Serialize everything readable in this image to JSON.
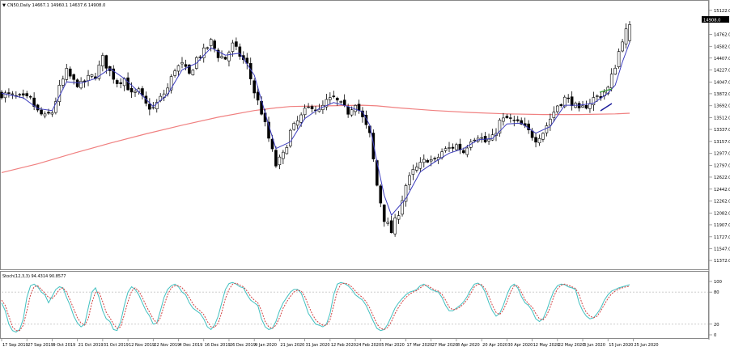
{
  "header": {
    "symbol_line": "CN50,Daily  14667.1 14960.1 14637.6 14908.0"
  },
  "price_label": "14908.0",
  "stoch_label": "Stoch(12,3,3) 94.4314 90.8577",
  "colors": {
    "bull": "#ffffff",
    "bear": "#000000",
    "ema_fast": "#3c3cbe",
    "ma_slow": "#f08080",
    "stoch_main": "#40c0c0",
    "stoch_signal": "#d04040",
    "trend_blue": "#1a1a9a",
    "trend_green": "#3aa03a",
    "grid": "#c8c8c8"
  },
  "chart_data": [
    {
      "type": "candlestick",
      "title": "CN50,Daily",
      "ohlc_header": {
        "open": 14667.1,
        "high": 14960.1,
        "low": 14637.6,
        "close": 14908.0
      },
      "y_ticks": [
        15122.0,
        14762.0,
        14582.0,
        14407.0,
        14227.0,
        14047.0,
        13872.0,
        13692.0,
        13512.0,
        13337.0,
        13157.0,
        12977.0,
        12797.0,
        12622.0,
        12442.0,
        12262.0,
        12082.0,
        11907.0,
        11727.0,
        11547.0,
        11372.0
      ],
      "ylim": [
        11300,
        15180
      ],
      "x_labels": [
        "17 Sep 2019",
        "27 Sep 2019",
        "9 Oct 2019",
        "21 Oct 2019",
        "31 Oct 2019",
        "12 Nov 2019",
        "22 Nov 2019",
        "4 Dec 2019",
        "16 Dec 2019",
        "26 Dec 2019",
        "9 Jan 2020",
        "21 Jan 2020",
        "31 Jan 2020",
        "12 Feb 2020",
        "24 Feb 2020",
        "5 Mar 2020",
        "17 Mar 2020",
        "27 Mar 2020",
        "8 Apr 2020",
        "20 Apr 2020",
        "30 Apr 2020",
        "12 May 2020",
        "22 May 2020",
        "3 Jun 2020",
        "15 Jun 2020",
        "25 Jun 2020"
      ],
      "close_path": [
        [
          0,
          13870
        ],
        [
          4,
          13820
        ],
        [
          8,
          13780
        ],
        [
          10,
          13600
        ],
        [
          12,
          13520
        ],
        [
          14,
          13600
        ],
        [
          16,
          13950
        ],
        [
          18,
          14200
        ],
        [
          20,
          14050
        ],
        [
          22,
          14000
        ],
        [
          24,
          14100
        ],
        [
          26,
          14150
        ],
        [
          28,
          14400
        ],
        [
          30,
          14200
        ],
        [
          32,
          14050
        ],
        [
          34,
          14100
        ],
        [
          36,
          13850
        ],
        [
          38,
          13900
        ],
        [
          40,
          13700
        ],
        [
          42,
          13650
        ],
        [
          44,
          13800
        ],
        [
          46,
          13950
        ],
        [
          48,
          14250
        ],
        [
          50,
          14300
        ],
        [
          52,
          14150
        ],
        [
          54,
          14400
        ],
        [
          56,
          14500
        ],
        [
          58,
          14650
        ],
        [
          60,
          14450
        ],
        [
          62,
          14400
        ],
        [
          64,
          14600
        ],
        [
          66,
          14450
        ],
        [
          68,
          14300
        ],
        [
          70,
          13900
        ],
        [
          72,
          13600
        ],
        [
          74,
          13200
        ],
        [
          76,
          12800
        ],
        [
          78,
          12950
        ],
        [
          80,
          13300
        ],
        [
          82,
          13450
        ],
        [
          84,
          13600
        ],
        [
          86,
          13700
        ],
        [
          88,
          13600
        ],
        [
          90,
          13750
        ],
        [
          92,
          13800
        ],
        [
          94,
          13700
        ],
        [
          96,
          13600
        ],
        [
          98,
          13750
        ],
        [
          100,
          13500
        ],
        [
          102,
          13250
        ],
        [
          104,
          12500
        ],
        [
          106,
          12000
        ],
        [
          108,
          11800
        ],
        [
          110,
          12100
        ],
        [
          112,
          12500
        ],
        [
          114,
          12700
        ],
        [
          116,
          12800
        ],
        [
          118,
          12900
        ],
        [
          120,
          12850
        ],
        [
          122,
          13000
        ],
        [
          124,
          13050
        ],
        [
          126,
          13100
        ],
        [
          128,
          13000
        ],
        [
          130,
          13200
        ],
        [
          132,
          13250
        ],
        [
          134,
          13150
        ],
        [
          136,
          13200
        ],
        [
          138,
          13450
        ],
        [
          140,
          13500
        ],
        [
          142,
          13450
        ],
        [
          144,
          13400
        ],
        [
          146,
          13300
        ],
        [
          148,
          13200
        ],
        [
          150,
          13300
        ],
        [
          152,
          13500
        ],
        [
          154,
          13700
        ],
        [
          156,
          13800
        ],
        [
          158,
          13750
        ],
        [
          160,
          13600
        ],
        [
          162,
          13700
        ],
        [
          164,
          13800
        ],
        [
          166,
          13850
        ],
        [
          168,
          13950
        ],
        [
          170,
          14300
        ],
        [
          172,
          14700
        ],
        [
          174,
          14908
        ]
      ],
      "series": [
        {
          "type": "line",
          "points": [
            [
              0,
              13880
            ],
            [
              6,
              13810
            ],
            [
              10,
              13650
            ],
            [
              14,
              13620
            ],
            [
              18,
              14050
            ],
            [
              22,
              14030
            ],
            [
              26,
              14100
            ],
            [
              30,
              14250
            ],
            [
              34,
              14100
            ],
            [
              38,
              13900
            ],
            [
              42,
              13680
            ],
            [
              46,
              13860
            ],
            [
              50,
              14230
            ],
            [
              54,
              14330
            ],
            [
              58,
              14560
            ],
            [
              62,
              14450
            ],
            [
              66,
              14480
            ],
            [
              70,
              14150
            ],
            [
              74,
              13400
            ],
            [
              76,
              13050
            ],
            [
              80,
              13150
            ],
            [
              84,
              13500
            ],
            [
              88,
              13650
            ],
            [
              92,
              13740
            ],
            [
              96,
              13680
            ],
            [
              100,
              13600
            ],
            [
              102,
              13400
            ],
            [
              104,
              12850
            ],
            [
              106,
              12350
            ],
            [
              108,
              12050
            ],
            [
              112,
              12300
            ],
            [
              116,
              12700
            ],
            [
              120,
              12850
            ],
            [
              124,
              12980
            ],
            [
              128,
              13050
            ],
            [
              132,
              13180
            ],
            [
              136,
              13200
            ],
            [
              140,
              13420
            ],
            [
              144,
              13430
            ],
            [
              148,
              13280
            ],
            [
              152,
              13380
            ],
            [
              156,
              13700
            ],
            [
              160,
              13700
            ],
            [
              164,
              13730
            ],
            [
              168,
              13880
            ],
            [
              170,
              14000
            ],
            [
              172,
              14350
            ],
            [
              174,
              14640
            ]
          ]
        },
        {
          "type": "line",
          "points": [
            [
              0,
              12690
            ],
            [
              10,
              12820
            ],
            [
              20,
              12980
            ],
            [
              30,
              13130
            ],
            [
              40,
              13270
            ],
            [
              50,
              13400
            ],
            [
              60,
              13520
            ],
            [
              70,
              13620
            ],
            [
              76,
              13660
            ],
            [
              80,
              13680
            ],
            [
              90,
              13690
            ],
            [
              100,
              13700
            ],
            [
              104,
              13690
            ],
            [
              110,
              13660
            ],
            [
              120,
              13620
            ],
            [
              130,
              13590
            ],
            [
              140,
              13570
            ],
            [
              150,
              13560
            ],
            [
              160,
              13560
            ],
            [
              170,
              13570
            ],
            [
              174,
              13580
            ]
          ]
        }
      ]
    },
    {
      "type": "line",
      "title": "Stoch(12,3,3)",
      "ylim": [
        0,
        100
      ],
      "levels": [
        80,
        20
      ],
      "tick_labels": [
        "100",
        "80",
        "20",
        "0"
      ],
      "series": [
        {
          "values": [
            60,
            45,
            20,
            8,
            5,
            10,
            30,
            70,
            92,
            95,
            90,
            80,
            75,
            60,
            72,
            85,
            90,
            88,
            70,
            55,
            35,
            22,
            15,
            20,
            50,
            80,
            88,
            70,
            45,
            30,
            25,
            10,
            8,
            25,
            55,
            80,
            90,
            85,
            75,
            60,
            45,
            35,
            20,
            22,
            45,
            70,
            85,
            92,
            95,
            90,
            80,
            75,
            60,
            50,
            45,
            40,
            30,
            15,
            10,
            18,
            35,
            60,
            85,
            96,
            98,
            95,
            90,
            88,
            75,
            65,
            60,
            55,
            30,
            15,
            10,
            12,
            25,
            45,
            60,
            70,
            80,
            85,
            85,
            78,
            60,
            40,
            30,
            20,
            18,
            15,
            20,
            40,
            75,
            95,
            98,
            96,
            92,
            85,
            75,
            70,
            65,
            55,
            40,
            25,
            12,
            8,
            10,
            20,
            35,
            50,
            60,
            68,
            75,
            80,
            82,
            85,
            92,
            95,
            90,
            85,
            82,
            80,
            70,
            55,
            45,
            45,
            50,
            55,
            62,
            72,
            85,
            95,
            97,
            92,
            80,
            60,
            45,
            35,
            40,
            55,
            75,
            90,
            95,
            88,
            72,
            60,
            55,
            45,
            30,
            25,
            30,
            45,
            65,
            82,
            92,
            95,
            94,
            90,
            88,
            85,
            60,
            45,
            35,
            30,
            32,
            40,
            50,
            65,
            75,
            82,
            85,
            88,
            90,
            92,
            94
          ]
        },
        {
          "values": [
            65,
            55,
            35,
            15,
            8,
            8,
            18,
            45,
            75,
            90,
            92,
            85,
            78,
            70,
            68,
            75,
            85,
            88,
            80,
            65,
            48,
            32,
            22,
            18,
            30,
            60,
            80,
            80,
            62,
            42,
            32,
            20,
            12,
            15,
            38,
            62,
            82,
            88,
            82,
            70,
            55,
            42,
            30,
            22,
            32,
            55,
            75,
            88,
            92,
            92,
            88,
            80,
            70,
            58,
            50,
            45,
            38,
            25,
            15,
            14,
            22,
            42,
            68,
            85,
            95,
            97,
            93,
            90,
            82,
            72,
            65,
            60,
            45,
            25,
            15,
            12,
            18,
            32,
            50,
            62,
            72,
            80,
            84,
            82,
            72,
            55,
            40,
            28,
            22,
            18,
            18,
            28,
            55,
            82,
            95,
            97,
            95,
            90,
            82,
            75,
            70,
            62,
            50,
            35,
            20,
            12,
            10,
            14,
            25,
            40,
            52,
            62,
            70,
            76,
            80,
            83,
            88,
            93,
            93,
            88,
            84,
            82,
            76,
            65,
            52,
            47,
            48,
            52,
            58,
            66,
            78,
            90,
            95,
            94,
            86,
            72,
            55,
            42,
            38,
            46,
            62,
            80,
            92,
            92,
            80,
            66,
            58,
            52,
            40,
            30,
            28,
            36,
            52,
            72,
            86,
            93,
            95,
            93,
            90,
            87,
            75,
            55,
            42,
            35,
            32,
            35,
            45,
            57,
            68,
            77,
            82,
            86,
            88,
            90,
            91
          ]
        }
      ]
    }
  ]
}
